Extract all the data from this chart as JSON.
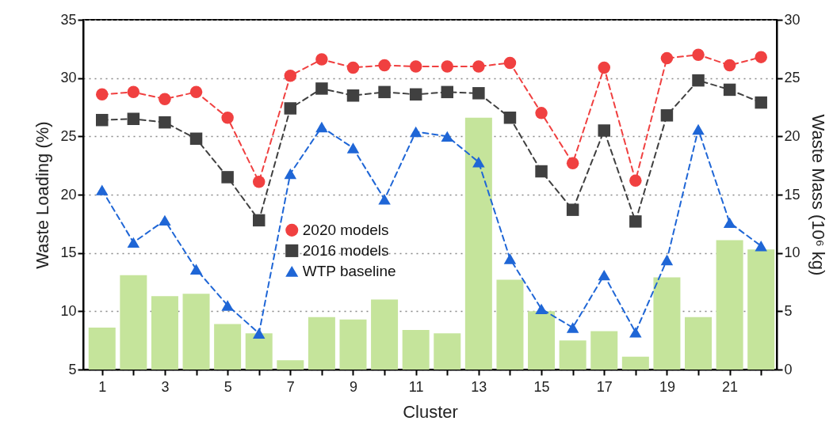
{
  "chart_data": {
    "type": "line",
    "xlabel": "Cluster",
    "ylabel": "Waste Loading (%)",
    "y2label": "Waste Mass (10⁶ kg)",
    "x": [
      1,
      2,
      3,
      4,
      5,
      6,
      7,
      8,
      9,
      10,
      11,
      12,
      13,
      14,
      15,
      16,
      17,
      18,
      19,
      20,
      21,
      22
    ],
    "xlim": [
      0.4,
      22.5
    ],
    "xticks": [
      1,
      {
        "value": 2,
        "label": null
      },
      3,
      {
        "value": 4,
        "label": null
      },
      5,
      {
        "value": 6,
        "label": null
      },
      7,
      {
        "value": 8,
        "label": null
      },
      9,
      {
        "value": 10,
        "label": null
      },
      11,
      {
        "value": 12,
        "label": null
      },
      13,
      {
        "value": 14,
        "label": null
      },
      15,
      {
        "value": 16,
        "label": null
      },
      17,
      {
        "value": 18,
        "label": null
      },
      19,
      {
        "value": 20,
        "label": null
      },
      21,
      {
        "value": 22,
        "label": null
      }
    ],
    "ylim": [
      5,
      35
    ],
    "yticks": [
      5,
      10,
      15,
      20,
      25,
      30,
      35
    ],
    "y2lim": [
      0,
      30
    ],
    "y2ticks": [
      0,
      5,
      10,
      15,
      20,
      25,
      30
    ],
    "grid": "y",
    "legend": "center",
    "line_style": "dashed",
    "series": [
      {
        "type": "bar",
        "axis": "y2",
        "color": "#c5e49b",
        "values": [
          3.6,
          8.1,
          6.3,
          6.5,
          3.9,
          3.1,
          0.8,
          4.5,
          4.3,
          6.0,
          3.4,
          3.1,
          21.6,
          7.7,
          5.0,
          2.5,
          3.3,
          1.1,
          7.9,
          4.5,
          11.1,
          10.3
        ]
      },
      {
        "name": "2020 models",
        "color": "#f04040",
        "marker": "circle",
        "values": [
          28.6,
          28.8,
          28.2,
          28.8,
          26.6,
          21.1,
          30.2,
          31.6,
          30.9,
          31.1,
          31.0,
          31.0,
          31.0,
          31.3,
          27.0,
          22.7,
          30.9,
          21.2,
          31.7,
          32.0,
          31.1,
          31.8
        ]
      },
      {
        "name": "2016 models",
        "color": "#404040",
        "marker": "square",
        "values": [
          26.4,
          26.5,
          26.2,
          24.8,
          21.5,
          17.8,
          27.4,
          29.1,
          28.5,
          28.8,
          28.6,
          28.8,
          28.7,
          26.6,
          22.0,
          18.7,
          25.5,
          17.7,
          26.8,
          29.8,
          29.0,
          27.9
        ]
      },
      {
        "name": "WTP baseline",
        "color": "#1f66d6",
        "marker": "triangle",
        "values": [
          20.4,
          15.9,
          17.8,
          13.6,
          10.5,
          8.1,
          21.8,
          25.8,
          24.0,
          19.6,
          25.4,
          25.0,
          22.8,
          14.5,
          10.2,
          8.6,
          13.1,
          8.2,
          14.4,
          25.6,
          17.6,
          15.6
        ]
      }
    ]
  }
}
